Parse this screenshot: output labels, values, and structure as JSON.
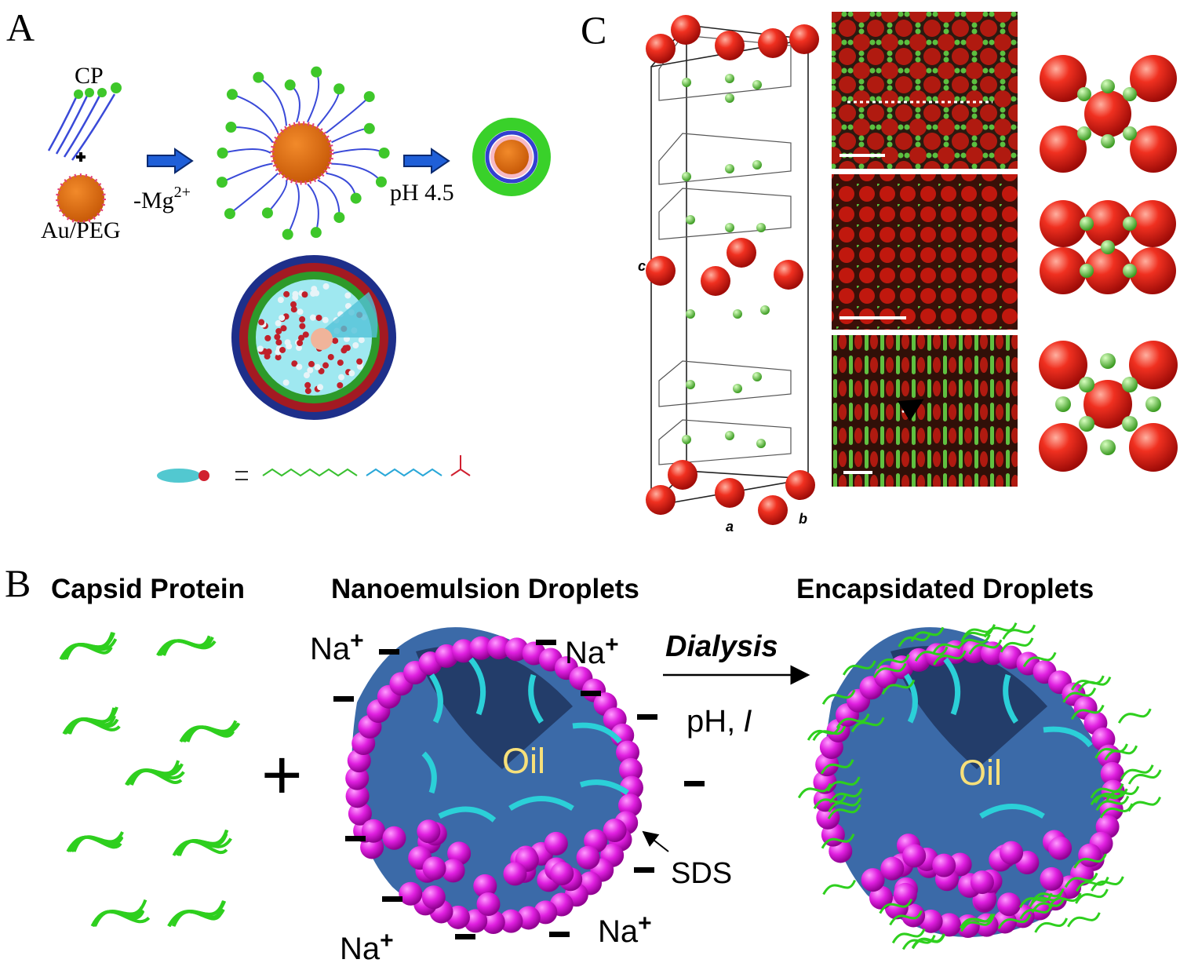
{
  "panels": {
    "a": {
      "label": "A",
      "cp": "CP",
      "au_peg": "Au/PEG",
      "mg": {
        "text": "-Mg",
        "superscript": "2+"
      },
      "ph": "pH 4.5"
    },
    "c": {
      "label": "C",
      "axes": {
        "c": "c",
        "a": "a",
        "b": "b"
      }
    },
    "b": {
      "label": "B",
      "titles": [
        "Capsid Protein",
        "Nanoemulsion Droplets",
        "Encapsidated Droplets"
      ],
      "plus": "+",
      "ions": [
        {
          "base": "Na",
          "charge": "+"
        },
        {
          "base": "Na",
          "charge": "+"
        },
        {
          "base": "Na",
          "charge": "+"
        },
        {
          "base": "Na",
          "charge": "+"
        }
      ],
      "arrow": {
        "top": "Dialysis",
        "bottom": {
          "text": "pH,",
          "italic": "I"
        }
      },
      "oil": [
        "Oil",
        "Oil"
      ],
      "sds": "SDS"
    }
  }
}
